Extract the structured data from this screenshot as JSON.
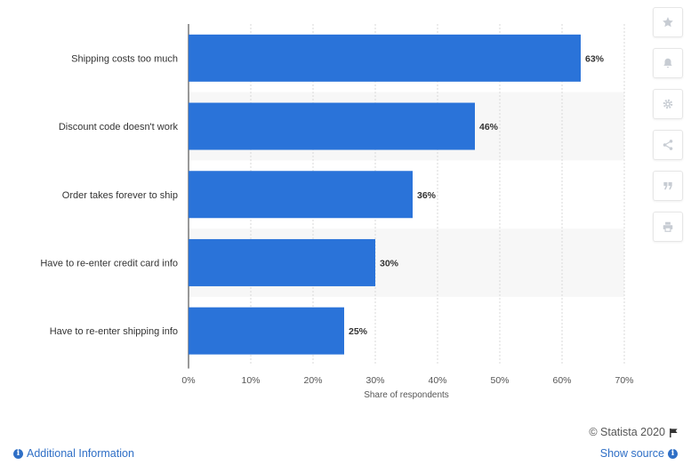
{
  "chart_data": {
    "type": "bar",
    "orientation": "horizontal",
    "categories": [
      "Shipping costs too much",
      "Discount code doesn't work",
      "Order takes forever to ship",
      "Have to re-enter credit card info",
      "Have to re-enter shipping info"
    ],
    "values": [
      63,
      46,
      36,
      30,
      25
    ],
    "value_labels": [
      "63%",
      "46%",
      "36%",
      "30%",
      "25%"
    ],
    "xlabel": "Share of respondents",
    "xlim": [
      0,
      70
    ],
    "x_ticks": [
      0,
      10,
      20,
      30,
      40,
      50,
      60,
      70
    ],
    "x_tick_labels": [
      "0%",
      "10%",
      "20%",
      "30%",
      "40%",
      "50%",
      "60%",
      "70%"
    ],
    "grid": "vertical dashed",
    "bar_color": "#2a73d9",
    "band_color": "#f7f7f7"
  },
  "toolbar": {
    "icons": [
      "star-icon",
      "bell-icon",
      "gear-icon",
      "share-icon",
      "quote-icon",
      "print-icon"
    ]
  },
  "footer": {
    "copyright": "© Statista 2020",
    "additional_info": "Additional Information",
    "show_source": "Show source"
  }
}
